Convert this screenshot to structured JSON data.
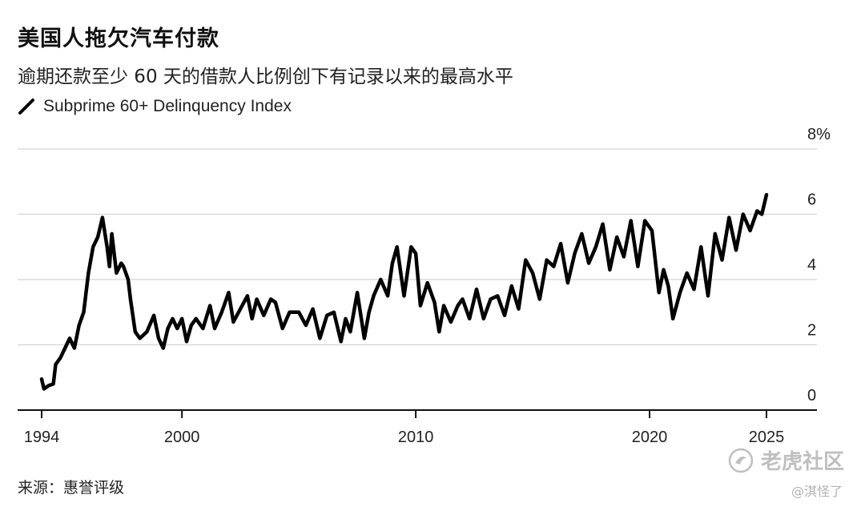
{
  "header": {
    "title": "美国人拖欠汽车付款",
    "subtitle": "逾期还款至少 60 天的借款人比例创下有记录以来的最高水平"
  },
  "legend": {
    "label": "Subprime 60+ Delinquency Index",
    "line_color": "#000000"
  },
  "source": "来源：惠誉评级",
  "watermark": {
    "brand": "老虎社区",
    "user": "@淇怪了"
  },
  "chart_data": {
    "type": "line",
    "title": "美国人拖欠汽车付款",
    "subtitle": "逾期还款至少 60 天的借款人比例创下有记录以来的最高水平",
    "xlabel": "",
    "ylabel": "",
    "xlim": [
      1994,
      2026.2
    ],
    "ylim": [
      0,
      8
    ],
    "y_ticks": [
      0,
      2,
      4,
      6,
      8
    ],
    "y_tick_labels": [
      "0",
      "2",
      "4",
      "6",
      "8%"
    ],
    "x_ticks": [
      1994,
      2000,
      2010,
      2020,
      2025
    ],
    "x_tick_labels": [
      "1994",
      "2000",
      "2010",
      "2020",
      "2025"
    ],
    "grid": true,
    "legend_position": "top-left",
    "series": [
      {
        "name": "Subprime 60+ Delinquency Index",
        "color": "#000000",
        "x": [
          1994.0,
          1994.1,
          1994.3,
          1994.5,
          1994.6,
          1994.8,
          1995.0,
          1995.2,
          1995.4,
          1995.6,
          1995.8,
          1996.0,
          1996.2,
          1996.4,
          1996.6,
          1996.8,
          1996.9,
          1997.0,
          1997.2,
          1997.4,
          1997.5,
          1997.7,
          1997.8,
          1998.0,
          1998.2,
          1998.5,
          1998.8,
          1999.0,
          1999.2,
          1999.4,
          1999.6,
          1999.8,
          2000.0,
          2000.2,
          2000.4,
          2000.6,
          2000.9,
          2001.2,
          2001.4,
          2001.7,
          2002.0,
          2002.2,
          2002.5,
          2002.8,
          2003.0,
          2003.2,
          2003.5,
          2003.8,
          2004.0,
          2004.3,
          2004.6,
          2005.0,
          2005.3,
          2005.6,
          2005.9,
          2006.2,
          2006.5,
          2006.8,
          2007.0,
          2007.2,
          2007.5,
          2007.8,
          2008.0,
          2008.2,
          2008.5,
          2008.8,
          2009.0,
          2009.2,
          2009.5,
          2009.8,
          2010.0,
          2010.2,
          2010.5,
          2010.8,
          2011.0,
          2011.2,
          2011.5,
          2011.8,
          2012.0,
          2012.3,
          2012.6,
          2012.9,
          2013.2,
          2013.5,
          2013.8,
          2014.1,
          2014.4,
          2014.7,
          2015.0,
          2015.3,
          2015.6,
          2015.9,
          2016.2,
          2016.5,
          2016.8,
          2017.1,
          2017.4,
          2017.7,
          2018.0,
          2018.3,
          2018.6,
          2018.9,
          2019.2,
          2019.5,
          2019.8,
          2020.1,
          2020.4,
          2020.6,
          2020.8,
          2021.0,
          2021.3,
          2021.6,
          2021.9,
          2022.2,
          2022.5,
          2022.8,
          2023.1,
          2023.4,
          2023.7,
          2024.0,
          2024.3,
          2024.6,
          2024.8,
          2025.0
        ],
        "values": [
          0.95,
          0.65,
          0.75,
          0.8,
          1.4,
          1.6,
          1.9,
          2.2,
          1.9,
          2.6,
          3.0,
          4.2,
          5.0,
          5.3,
          5.9,
          5.0,
          4.4,
          5.4,
          4.2,
          4.5,
          4.4,
          4.0,
          3.4,
          2.4,
          2.2,
          2.4,
          2.9,
          2.2,
          1.9,
          2.5,
          2.8,
          2.5,
          2.8,
          2.1,
          2.6,
          2.8,
          2.5,
          3.2,
          2.5,
          3.0,
          3.6,
          2.7,
          3.1,
          3.5,
          2.8,
          3.4,
          2.9,
          3.4,
          3.3,
          2.5,
          3.0,
          3.0,
          2.6,
          3.1,
          2.2,
          2.9,
          3.0,
          2.1,
          2.8,
          2.4,
          3.6,
          2.2,
          3.0,
          3.5,
          4.0,
          3.5,
          4.5,
          5.0,
          3.5,
          5.0,
          4.8,
          3.2,
          3.9,
          3.3,
          2.4,
          3.2,
          2.7,
          3.2,
          3.4,
          2.8,
          3.7,
          2.8,
          3.4,
          3.5,
          2.9,
          3.8,
          3.1,
          4.6,
          4.2,
          3.4,
          4.6,
          4.4,
          5.1,
          3.9,
          4.8,
          5.4,
          4.5,
          5.0,
          5.7,
          4.3,
          5.3,
          4.7,
          5.8,
          4.4,
          5.8,
          5.5,
          3.6,
          4.3,
          3.8,
          2.8,
          3.6,
          4.2,
          3.7,
          5.0,
          3.5,
          5.4,
          4.6,
          5.9,
          4.9,
          6.0,
          5.5,
          6.1,
          6.0,
          6.6
        ]
      }
    ]
  }
}
